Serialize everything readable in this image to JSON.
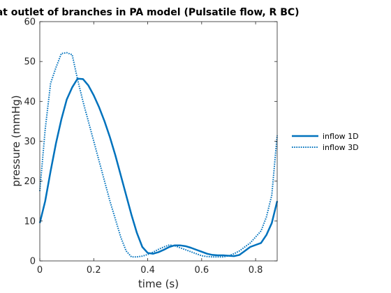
{
  "chart_data": {
    "type": "line",
    "title": "ure at outlet of branches in PA model (Pulsatile flow, R BC)",
    "xlabel": "time (s)",
    "ylabel": "pressure (mmHg)",
    "xlim": [
      0,
      0.88
    ],
    "ylim": [
      0,
      60
    ],
    "xticks": [
      0,
      0.2,
      0.4,
      0.6,
      0.8
    ],
    "xtick_labels": [
      "0",
      "0.2",
      "0.4",
      "0.6",
      "0.8"
    ],
    "yticks": [
      0,
      10,
      20,
      30,
      40,
      50,
      60
    ],
    "ytick_labels": [
      "0",
      "10",
      "20",
      "30",
      "40",
      "50",
      "60"
    ],
    "grid": false,
    "legend_position": "right",
    "series": [
      {
        "name": "inflow 1D",
        "color": "#0072BD",
        "line_style": "solid",
        "x": [
          0,
          0.02,
          0.04,
          0.06,
          0.08,
          0.1,
          0.12,
          0.14,
          0.16,
          0.18,
          0.2,
          0.22,
          0.24,
          0.26,
          0.28,
          0.3,
          0.32,
          0.34,
          0.36,
          0.38,
          0.4,
          0.42,
          0.44,
          0.46,
          0.48,
          0.5,
          0.52,
          0.54,
          0.56,
          0.58,
          0.6,
          0.62,
          0.64,
          0.66,
          0.68,
          0.7,
          0.72,
          0.74,
          0.76,
          0.78,
          0.8,
          0.82,
          0.84,
          0.86,
          0.88
        ],
        "y": [
          9.5,
          15,
          22.5,
          29.5,
          35.5,
          40.5,
          43.5,
          45.7,
          45.6,
          44,
          41.5,
          38.5,
          35,
          31,
          26.5,
          21.5,
          16.5,
          11.5,
          7,
          3.5,
          2,
          1.8,
          2.2,
          2.8,
          3.5,
          3.9,
          3.9,
          3.7,
          3.3,
          2.8,
          2.3,
          1.8,
          1.5,
          1.4,
          1.4,
          1.3,
          1.2,
          1.5,
          2.5,
          3.5,
          4,
          4.5,
          6.5,
          9.5,
          15
        ]
      },
      {
        "name": "inflow 3D",
        "color": "#0072BD",
        "line_style": "dotted",
        "x": [
          0,
          0.02,
          0.04,
          0.06,
          0.08,
          0.1,
          0.12,
          0.14,
          0.16,
          0.18,
          0.2,
          0.22,
          0.24,
          0.26,
          0.28,
          0.3,
          0.32,
          0.34,
          0.36,
          0.38,
          0.4,
          0.42,
          0.44,
          0.46,
          0.48,
          0.5,
          0.52,
          0.54,
          0.56,
          0.58,
          0.6,
          0.62,
          0.64,
          0.66,
          0.68,
          0.7,
          0.72,
          0.74,
          0.76,
          0.78,
          0.8,
          0.82,
          0.84,
          0.86,
          0.88
        ],
        "y": [
          17.5,
          33,
          44.5,
          48.5,
          52,
          52.2,
          51.7,
          45.5,
          40,
          35,
          30,
          25,
          20,
          15,
          10.5,
          6,
          2.5,
          1,
          1,
          1.2,
          1.6,
          2.2,
          2.9,
          3.5,
          4,
          3.8,
          3.3,
          2.8,
          2.3,
          1.8,
          1.3,
          1.1,
          1,
          1,
          1,
          1.3,
          1.8,
          2.5,
          3.5,
          4.5,
          6,
          7.5,
          11,
          16.5,
          31.5
        ]
      }
    ]
  }
}
